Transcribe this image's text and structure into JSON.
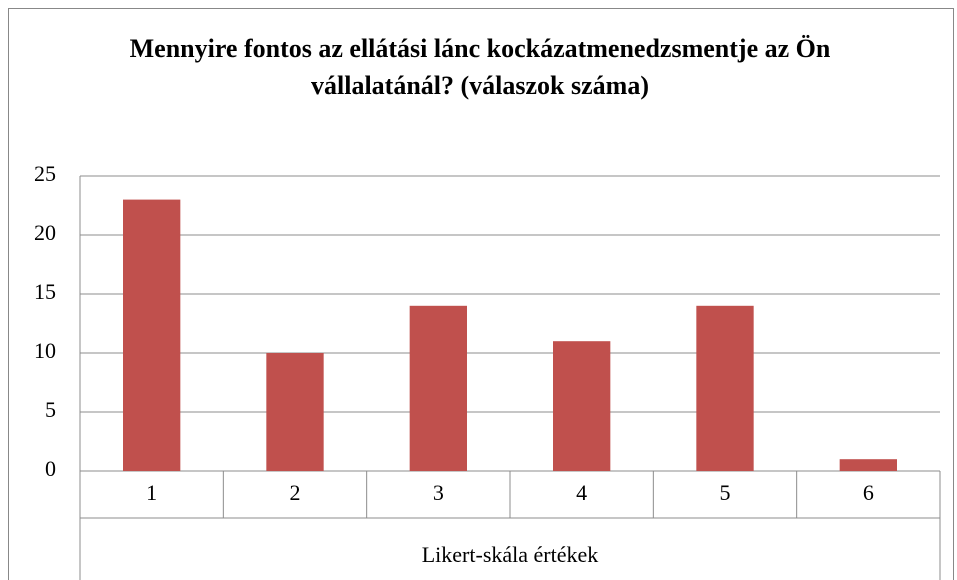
{
  "chart_data": {
    "type": "bar",
    "title": "Mennyire fontos az ellátási lánc kockázatmenedzsmentje az Ön vállalatánál? (válaszok száma)",
    "x_label": "Likert-skála értékek",
    "categories": [
      "1",
      "2",
      "3",
      "4",
      "5",
      "6"
    ],
    "values": [
      23,
      10,
      14,
      11,
      14,
      1
    ],
    "color": "#c0504d",
    "ylim": [
      0,
      25
    ],
    "yticks": [
      0,
      5,
      10,
      15,
      20,
      25
    ],
    "grid": true
  }
}
